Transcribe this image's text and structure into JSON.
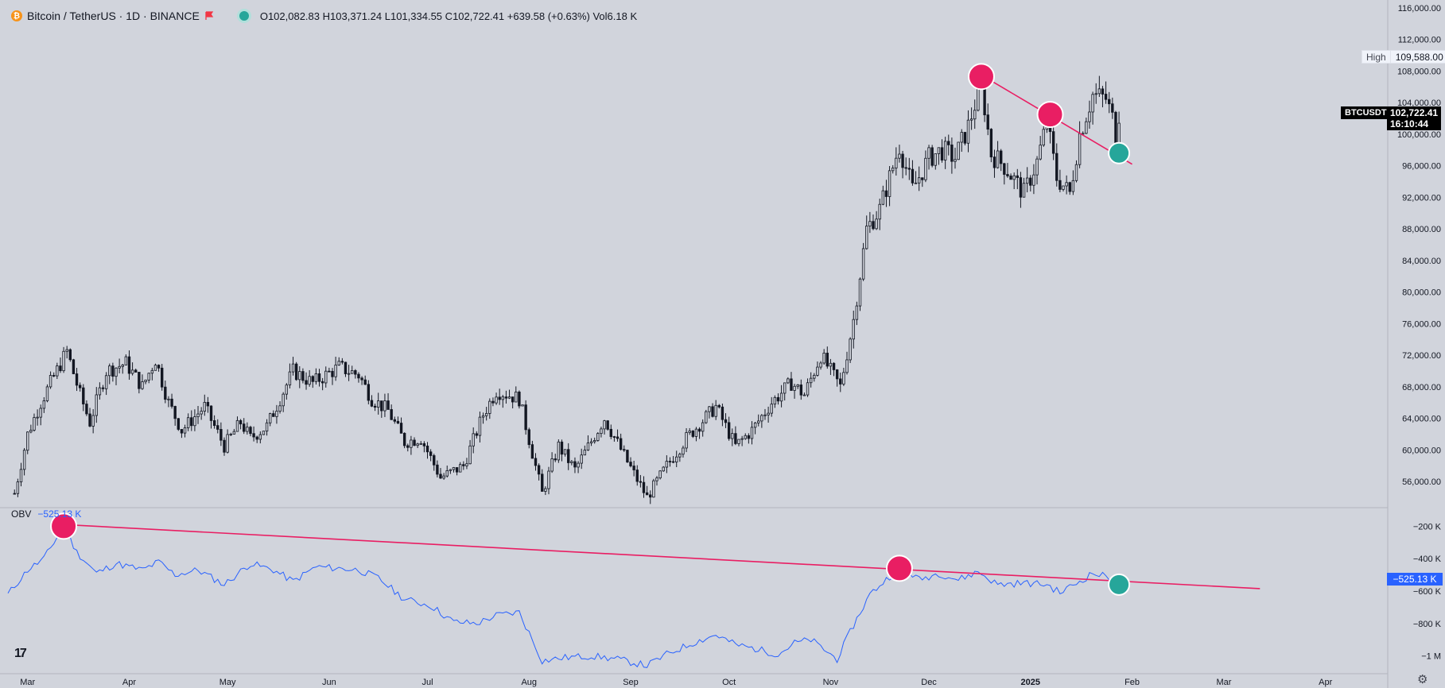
{
  "header": {
    "symbol_title": "Bitcoin / TetherUS · 1D · BINANCE",
    "ohlc": {
      "open_label": "O",
      "open": "102,082.83",
      "high_label": "H",
      "high": "103,371.24",
      "low_label": "L",
      "low": "101,334.55",
      "close_label": "C",
      "close": "102,722.41",
      "change": "+639.58 (+0.63%)",
      "vol_label": "Vol",
      "vol": "6.18 K"
    },
    "icons": [
      "bitcoin-coin-icon",
      "red-flag-icon",
      "market-status-dot-icon"
    ]
  },
  "price_scale": {
    "ticks": [
      "116,000.00",
      "112,000.00",
      "108,000.00",
      "104,000.00",
      "100,000.00",
      "96,000.00",
      "92,000.00",
      "88,000.00",
      "84,000.00",
      "80,000.00",
      "76,000.00",
      "72,000.00",
      "68,000.00",
      "64,000.00",
      "60,000.00",
      "56,000.00"
    ],
    "high_label": "High",
    "high_value": "109,588.00",
    "symbol_tag": "BTCUSDT",
    "last_price": "102,722.41",
    "countdown": "16:10:44"
  },
  "obv_scale": {
    "ticks": [
      "−200 K",
      "−400 K",
      "−600 K",
      "−800 K",
      "−1 M"
    ],
    "last_value": "−525.13 K"
  },
  "obv_legend": {
    "name": "OBV",
    "value": "−525.13 K"
  },
  "time_axis": {
    "labels": [
      "Mar",
      "Apr",
      "May",
      "Jun",
      "Jul",
      "Aug",
      "Sep",
      "Oct",
      "Nov",
      "Dec",
      "2025",
      "Feb",
      "Mar",
      "Apr"
    ]
  },
  "colors": {
    "background": "#d1d4dc",
    "candle": "#131722",
    "obv_line": "#2962ff",
    "trendline": "#e91e63",
    "marker_red": "#e91e63",
    "marker_green": "#26a69a"
  },
  "chart_data": [
    {
      "type": "candlestick",
      "title": "Bitcoin / TetherUS · 1D · BINANCE",
      "ylim": [
        53000,
        117000
      ],
      "x_range": [
        "2024-02-24",
        "2025-04-20"
      ],
      "series": [
        {
          "name": "BTCUSDT",
          "points": [
            [
              "2024-02-26",
              54500
            ],
            [
              "2024-03-01",
              62000
            ],
            [
              "2024-03-05",
              66000
            ],
            [
              "2024-03-08",
              68500
            ],
            [
              "2024-03-13",
              72500
            ],
            [
              "2024-03-17",
              67000
            ],
            [
              "2024-03-20",
              63500
            ],
            [
              "2024-03-25",
              70000
            ],
            [
              "2024-03-31",
              71000
            ],
            [
              "2024-04-05",
              68000
            ],
            [
              "2024-04-09",
              71500
            ],
            [
              "2024-04-13",
              66000
            ],
            [
              "2024-04-17",
              62500
            ],
            [
              "2024-04-24",
              65500
            ],
            [
              "2024-04-30",
              60500
            ],
            [
              "2024-05-05",
              63500
            ],
            [
              "2024-05-08",
              61500
            ],
            [
              "2024-05-13",
              63000
            ],
            [
              "2024-05-17",
              66500
            ],
            [
              "2024-05-21",
              70000
            ],
            [
              "2024-05-27",
              68500
            ],
            [
              "2024-06-04",
              70500
            ],
            [
              "2024-06-10",
              69500
            ],
            [
              "2024-06-14",
              66500
            ],
            [
              "2024-06-19",
              65000
            ],
            [
              "2024-06-24",
              61000
            ],
            [
              "2024-06-29",
              61500
            ],
            [
              "2024-07-05",
              56500
            ],
            [
              "2024-07-12",
              58000
            ],
            [
              "2024-07-18",
              64500
            ],
            [
              "2024-07-22",
              67500
            ],
            [
              "2024-07-29",
              66500
            ],
            [
              "2024-08-05",
              54500
            ],
            [
              "2024-08-10",
              60500
            ],
            [
              "2024-08-15",
              57500
            ],
            [
              "2024-08-24",
              64000
            ],
            [
              "2024-08-31",
              58500
            ],
            [
              "2024-09-06",
              54000
            ],
            [
              "2024-09-12",
              58000
            ],
            [
              "2024-09-18",
              61500
            ],
            [
              "2024-09-27",
              65500
            ],
            [
              "2024-10-03",
              60500
            ],
            [
              "2024-10-08",
              62500
            ],
            [
              "2024-10-14",
              66000
            ],
            [
              "2024-10-20",
              68500
            ],
            [
              "2024-10-24",
              67000
            ],
            [
              "2024-10-29",
              72000
            ],
            [
              "2024-11-04",
              68000
            ],
            [
              "2024-11-08",
              76500
            ],
            [
              "2024-11-12",
              88000
            ],
            [
              "2024-11-16",
              90500
            ],
            [
              "2024-11-22",
              98500
            ],
            [
              "2024-11-26",
              93000
            ],
            [
              "2024-12-01",
              97000
            ],
            [
              "2024-12-05",
              98000
            ],
            [
              "2024-12-09",
              97000
            ],
            [
              "2024-12-13",
              101000
            ],
            [
              "2024-12-17",
              106500
            ],
            [
              "2024-12-20",
              97500
            ],
            [
              "2024-12-24",
              96000
            ],
            [
              "2024-12-30",
              92500
            ],
            [
              "2025-01-03",
              96500
            ],
            [
              "2025-01-06",
              101500
            ],
            [
              "2025-01-09",
              94500
            ],
            [
              "2025-01-13",
              92500
            ],
            [
              "2025-01-16",
              100000
            ],
            [
              "2025-01-20",
              105000
            ],
            [
              "2025-01-24",
              104500
            ],
            [
              "2025-01-26",
              102000
            ],
            [
              "2025-01-27",
              98000
            ],
            [
              "2025-01-28",
              102722
            ]
          ],
          "high": 109588
        }
      ]
    },
    {
      "type": "line",
      "series": [
        {
          "name": "OBV",
          "points": [
            [
              "2024-02-24",
              -620
            ],
            [
              "2024-03-01",
              -470
            ],
            [
              "2024-03-06",
              -400
            ],
            [
              "2024-03-12",
              -200
            ],
            [
              "2024-03-16",
              -360
            ],
            [
              "2024-03-22",
              -490
            ],
            [
              "2024-03-28",
              -430
            ],
            [
              "2024-04-05",
              -470
            ],
            [
              "2024-04-10",
              -420
            ],
            [
              "2024-04-15",
              -500
            ],
            [
              "2024-04-22",
              -470
            ],
            [
              "2024-04-30",
              -560
            ],
            [
              "2024-05-08",
              -430
            ],
            [
              "2024-05-15",
              -470
            ],
            [
              "2024-05-21",
              -540
            ],
            [
              "2024-05-28",
              -450
            ],
            [
              "2024-06-04",
              -460
            ],
            [
              "2024-06-10",
              -470
            ],
            [
              "2024-06-16",
              -520
            ],
            [
              "2024-06-24",
              -650
            ],
            [
              "2024-07-02",
              -690
            ],
            [
              "2024-07-09",
              -790
            ],
            [
              "2024-07-16",
              -800
            ],
            [
              "2024-07-22",
              -750
            ],
            [
              "2024-07-29",
              -730
            ],
            [
              "2024-08-05",
              -1030
            ],
            [
              "2024-08-12",
              -1010
            ],
            [
              "2024-08-20",
              -1000
            ],
            [
              "2024-08-28",
              -1020
            ],
            [
              "2024-09-06",
              -1060
            ],
            [
              "2024-09-12",
              -990
            ],
            [
              "2024-09-20",
              -920
            ],
            [
              "2024-09-27",
              -870
            ],
            [
              "2024-10-03",
              -930
            ],
            [
              "2024-10-10",
              -960
            ],
            [
              "2024-10-16",
              -990
            ],
            [
              "2024-10-21",
              -920
            ],
            [
              "2024-10-26",
              -900
            ],
            [
              "2024-11-03",
              -1020
            ],
            [
              "2024-11-08",
              -810
            ],
            [
              "2024-11-13",
              -620
            ],
            [
              "2024-11-19",
              -510
            ],
            [
              "2024-11-23",
              -450
            ],
            [
              "2024-11-28",
              -530
            ],
            [
              "2024-12-04",
              -490
            ],
            [
              "2024-12-10",
              -530
            ],
            [
              "2024-12-16",
              -480
            ],
            [
              "2024-12-22",
              -560
            ],
            [
              "2024-12-30",
              -550
            ],
            [
              "2025-01-06",
              -560
            ],
            [
              "2025-01-10",
              -610
            ],
            [
              "2025-01-16",
              -540
            ],
            [
              "2025-01-20",
              -490
            ],
            [
              "2025-01-24",
              -510
            ],
            [
              "2025-01-28",
              -525.13
            ]
          ]
        }
      ],
      "ylim": [
        -1080,
        -120
      ],
      "unit": "K"
    }
  ],
  "annotations": {
    "price_trendline": {
      "from": [
        "2024-12-17",
        107500
      ],
      "to": [
        "2025-02-01",
        96200
      ]
    },
    "obv_trendline": {
      "from": [
        "2024-03-12",
        -190
      ],
      "to": [
        "2025-03-12",
        -585
      ]
    },
    "price_markers": [
      {
        "date": "2024-12-17",
        "value": 107300,
        "color": "red"
      },
      {
        "date": "2025-01-07",
        "value": 102500,
        "color": "red"
      },
      {
        "date": "2025-01-28",
        "value": 97600,
        "color": "green"
      }
    ],
    "obv_markers": [
      {
        "date": "2024-03-12",
        "value": -200,
        "color": "red"
      },
      {
        "date": "2024-11-22",
        "value": -460,
        "color": "red"
      },
      {
        "date": "2025-01-28",
        "value": -560,
        "color": "green"
      }
    ]
  }
}
